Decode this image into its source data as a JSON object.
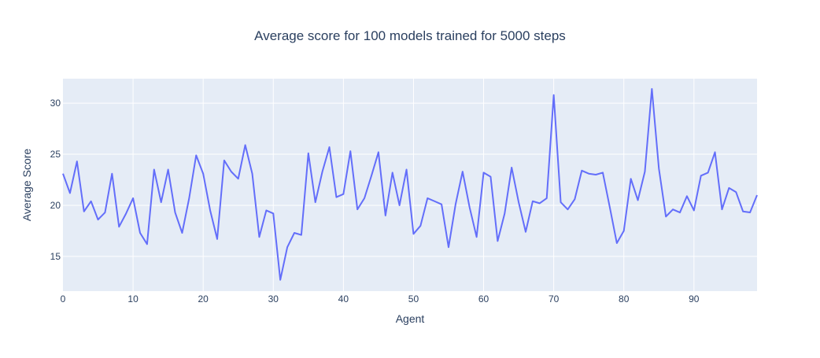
{
  "chart_data": {
    "type": "line",
    "title": "Average score for 100 models trained for 5000 steps",
    "xlabel": "Agent",
    "ylabel": "Average Score",
    "xlim": [
      0,
      99
    ],
    "ylim": [
      11.6,
      32.4
    ],
    "xticks": [
      0,
      10,
      20,
      30,
      40,
      50,
      60,
      70,
      80,
      90
    ],
    "yticks": [
      15,
      20,
      25,
      30
    ],
    "xtick_labels": [
      "0",
      "10",
      "20",
      "30",
      "40",
      "50",
      "60",
      "70",
      "80",
      "90"
    ],
    "ytick_labels": [
      "15",
      "20",
      "25",
      "30"
    ],
    "grid": true,
    "legend": "none",
    "colors": {
      "line": "#636efa",
      "plot_bg": "#e5ecf6",
      "grid": "#ffffff",
      "text": "#2a3f5f"
    },
    "series": [
      {
        "x": [
          0,
          1,
          2,
          3,
          4,
          5,
          6,
          7,
          8,
          9,
          10,
          11,
          12,
          13,
          14,
          15,
          16,
          17,
          18,
          19,
          20,
          21,
          22,
          23,
          24,
          25,
          26,
          27,
          28,
          29,
          30,
          31,
          32,
          33,
          34,
          35,
          36,
          37,
          38,
          39,
          40,
          41,
          42,
          43,
          44,
          45,
          46,
          47,
          48,
          49,
          50,
          51,
          52,
          53,
          54,
          55,
          56,
          57,
          58,
          59,
          60,
          61,
          62,
          63,
          64,
          65,
          66,
          67,
          68,
          69,
          70,
          71,
          72,
          73,
          74,
          75,
          76,
          77,
          78,
          79,
          80,
          81,
          82,
          83,
          84,
          85,
          86,
          87,
          88,
          89,
          90,
          91,
          92,
          93,
          94,
          95,
          96,
          97,
          98,
          99
        ],
        "values": [
          23.1,
          21.2,
          24.3,
          19.4,
          20.4,
          18.6,
          19.3,
          23.1,
          17.9,
          19.2,
          20.7,
          17.3,
          16.2,
          23.5,
          20.3,
          23.5,
          19.3,
          17.3,
          20.7,
          24.9,
          23.1,
          19.5,
          16.7,
          24.4,
          23.3,
          22.6,
          25.9,
          23.1,
          16.9,
          19.5,
          19.2,
          12.7,
          15.9,
          17.3,
          17.1,
          25.1,
          20.3,
          23.3,
          25.7,
          20.8,
          21.1,
          25.3,
          19.6,
          20.7,
          22.9,
          25.2,
          19.0,
          23.2,
          20.0,
          23.5,
          17.2,
          18.0,
          20.7,
          20.4,
          20.1,
          15.9,
          20.1,
          23.3,
          19.8,
          16.9,
          23.2,
          22.8,
          16.5,
          19.2,
          23.7,
          20.3,
          17.4,
          20.4,
          20.2,
          20.7,
          30.8,
          20.3,
          19.6,
          20.6,
          23.4,
          23.1,
          23.0,
          23.2,
          19.8,
          16.3,
          17.5,
          22.6,
          20.5,
          23.3,
          31.4,
          23.6,
          18.9,
          19.6,
          19.3,
          20.9,
          19.5,
          22.9,
          23.2,
          25.2,
          19.6,
          21.7,
          21.3,
          19.4,
          19.3,
          21.0
        ]
      }
    ]
  }
}
